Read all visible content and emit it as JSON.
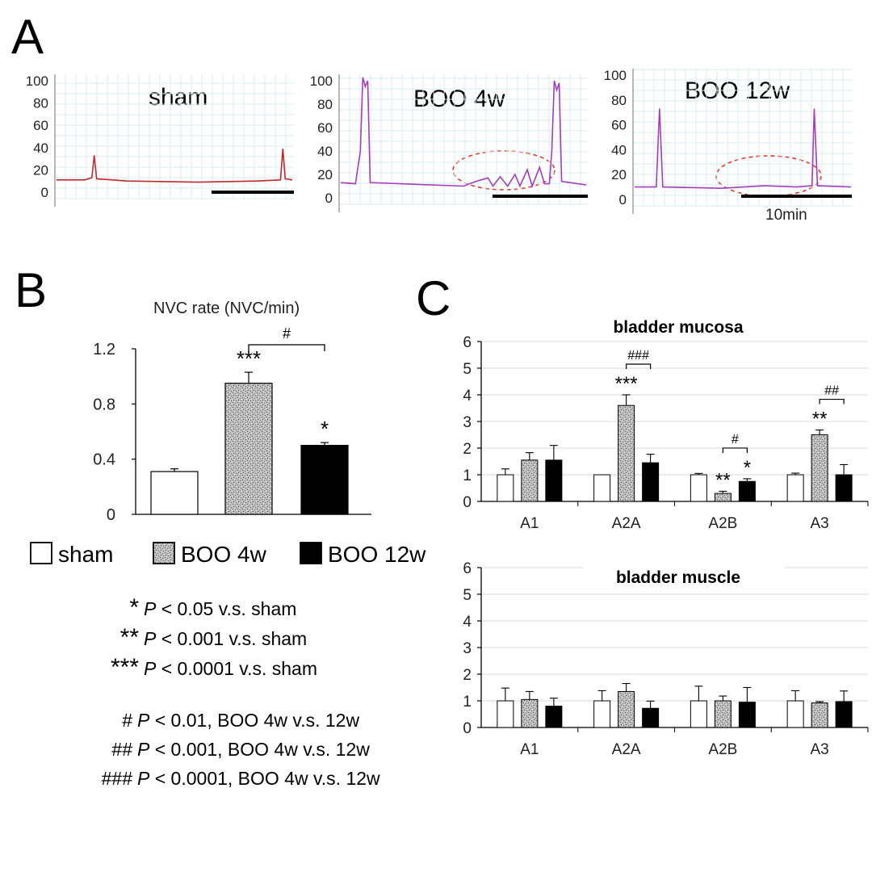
{
  "panels": {
    "a": "A",
    "b": "B",
    "c": "C"
  },
  "scale_bar_label": "10min",
  "chart_data": [
    {
      "id": "A-sham",
      "type": "line",
      "title": "sham",
      "yticks": [
        "0",
        "20",
        "40",
        "60",
        "80",
        "100"
      ],
      "ylim": [
        0,
        100
      ],
      "color": "#c0282a",
      "series": [
        {
          "values": [
            [
              0,
              11
            ],
            [
              0.12,
              11
            ],
            [
              0.15,
              13
            ],
            [
              0.16,
              33
            ],
            [
              0.17,
              12
            ],
            [
              0.3,
              10
            ],
            [
              0.6,
              9
            ],
            [
              0.85,
              10
            ],
            [
              0.95,
              11
            ],
            [
              0.96,
              39
            ],
            [
              0.97,
              12
            ],
            [
              1,
              11
            ]
          ]
        }
      ]
    },
    {
      "id": "A-BOO4w",
      "type": "line",
      "title": "BOO 4w",
      "yticks": [
        "0",
        "20",
        "40",
        "60",
        "80",
        "100"
      ],
      "ylim": [
        0,
        100
      ],
      "color": "#a43cbf",
      "series": [
        {
          "values": [
            [
              0,
              13
            ],
            [
              0.06,
              12
            ],
            [
              0.08,
              40
            ],
            [
              0.09,
              103
            ],
            [
              0.1,
              95
            ],
            [
              0.11,
              100
            ],
            [
              0.12,
              13
            ],
            [
              0.5,
              10
            ],
            [
              0.55,
              14
            ],
            [
              0.6,
              17
            ],
            [
              0.62,
              10
            ],
            [
              0.65,
              18
            ],
            [
              0.68,
              10
            ],
            [
              0.71,
              20
            ],
            [
              0.73,
              10
            ],
            [
              0.76,
              24
            ],
            [
              0.78,
              10
            ],
            [
              0.81,
              26
            ],
            [
              0.83,
              12
            ],
            [
              0.85,
              12
            ],
            [
              0.86,
              40
            ],
            [
              0.87,
              100
            ],
            [
              0.88,
              92
            ],
            [
              0.89,
              98
            ],
            [
              0.9,
              14
            ],
            [
              1,
              11
            ]
          ]
        }
      ]
    },
    {
      "id": "A-BOO12w",
      "type": "line",
      "title": "BOO 12w",
      "yticks": [
        "0",
        "20",
        "40",
        "60",
        "80",
        "100"
      ],
      "ylim": [
        0,
        100
      ],
      "color": "#a43cbf",
      "series": [
        {
          "values": [
            [
              0,
              10
            ],
            [
              0.1,
              10
            ],
            [
              0.115,
              73
            ],
            [
              0.13,
              10
            ],
            [
              0.4,
              9
            ],
            [
              0.6,
              11
            ],
            [
              0.75,
              10
            ],
            [
              0.82,
              11
            ],
            [
              0.83,
              73
            ],
            [
              0.845,
              11
            ],
            [
              1,
              10
            ]
          ]
        }
      ]
    },
    {
      "id": "B",
      "type": "bar",
      "title": "NVC rate (NVC/min)",
      "categories": [
        "sham",
        "BOO 4w",
        "BOO 12w"
      ],
      "values": [
        0.31,
        0.95,
        0.5
      ],
      "errors": [
        0.02,
        0.08,
        0.02
      ],
      "significance": [
        "",
        "***",
        "*"
      ],
      "comparison": {
        "label": "#"
      },
      "ylim": [
        0,
        1.2
      ],
      "yticks": [
        "0",
        "0.4",
        "0.8",
        "1.2"
      ]
    },
    {
      "id": "C-mucosa",
      "type": "bar",
      "title": "bladder mucosa",
      "categories": [
        "A1",
        "A2A",
        "A2B",
        "A3"
      ],
      "series": [
        {
          "name": "sham",
          "values": [
            1.0,
            1.0,
            1.0,
            1.0
          ],
          "errors": [
            0.22,
            0.0,
            0.05,
            0.06
          ],
          "sig": [
            "",
            "",
            "",
            ""
          ]
        },
        {
          "name": "BOO 4w",
          "values": [
            1.55,
            3.6,
            0.3,
            2.5
          ],
          "errors": [
            0.28,
            0.4,
            0.08,
            0.18
          ],
          "sig": [
            "",
            "***",
            "**",
            "**"
          ]
        },
        {
          "name": "BOO 12w",
          "values": [
            1.55,
            1.45,
            0.75,
            1.0
          ],
          "errors": [
            0.55,
            0.32,
            0.1,
            0.38
          ],
          "sig": [
            "",
            "",
            "*",
            ""
          ]
        }
      ],
      "brackets": [
        {
          "category": 1,
          "label": "###"
        },
        {
          "category": 2,
          "label": "#"
        },
        {
          "category": 3,
          "label": "##"
        }
      ],
      "ylim": [
        0,
        6
      ],
      "yticks": [
        "0",
        "1",
        "2",
        "3",
        "4",
        "5",
        "6"
      ],
      "grid": true
    },
    {
      "id": "C-muscle",
      "type": "bar",
      "title": "bladder muscle",
      "categories": [
        "A1",
        "A2A",
        "A2B",
        "A3"
      ],
      "series": [
        {
          "name": "sham",
          "values": [
            1.0,
            1.0,
            1.0,
            1.0
          ],
          "errors": [
            0.48,
            0.38,
            0.55,
            0.38
          ]
        },
        {
          "name": "BOO 4w",
          "values": [
            1.05,
            1.35,
            1.0,
            0.92
          ],
          "errors": [
            0.3,
            0.3,
            0.18,
            0.05
          ]
        },
        {
          "name": "BOO 12w",
          "values": [
            0.8,
            0.72,
            0.95,
            0.97
          ],
          "errors": [
            0.3,
            0.27,
            0.55,
            0.4
          ]
        }
      ],
      "ylim": [
        0,
        6
      ],
      "yticks": [
        "0",
        "1",
        "2",
        "3",
        "4",
        "5",
        "6"
      ],
      "grid": true
    }
  ],
  "legend": [
    {
      "label": "sham",
      "style": "open"
    },
    {
      "label": "BOO 4w",
      "style": "speckled"
    },
    {
      "label": "BOO 12w",
      "style": "solid"
    }
  ],
  "notes": {
    "star": [
      {
        "symbol": "*",
        "text": "< 0.05 v.s. sham"
      },
      {
        "symbol": "**",
        "text": "< 0.001 v.s. sham"
      },
      {
        "symbol": "***",
        "text": "< 0.0001 v.s. sham"
      }
    ],
    "hash": [
      {
        "symbol": "#",
        "text": "< 0.01, BOO 4w v.s. 12w"
      },
      {
        "symbol": "##",
        "text": "< 0.001, BOO 4w v.s. 12w"
      },
      {
        "symbol": "###",
        "text": "< 0.0001, BOO 4w v.s. 12w"
      }
    ],
    "p_symbol": "P"
  }
}
